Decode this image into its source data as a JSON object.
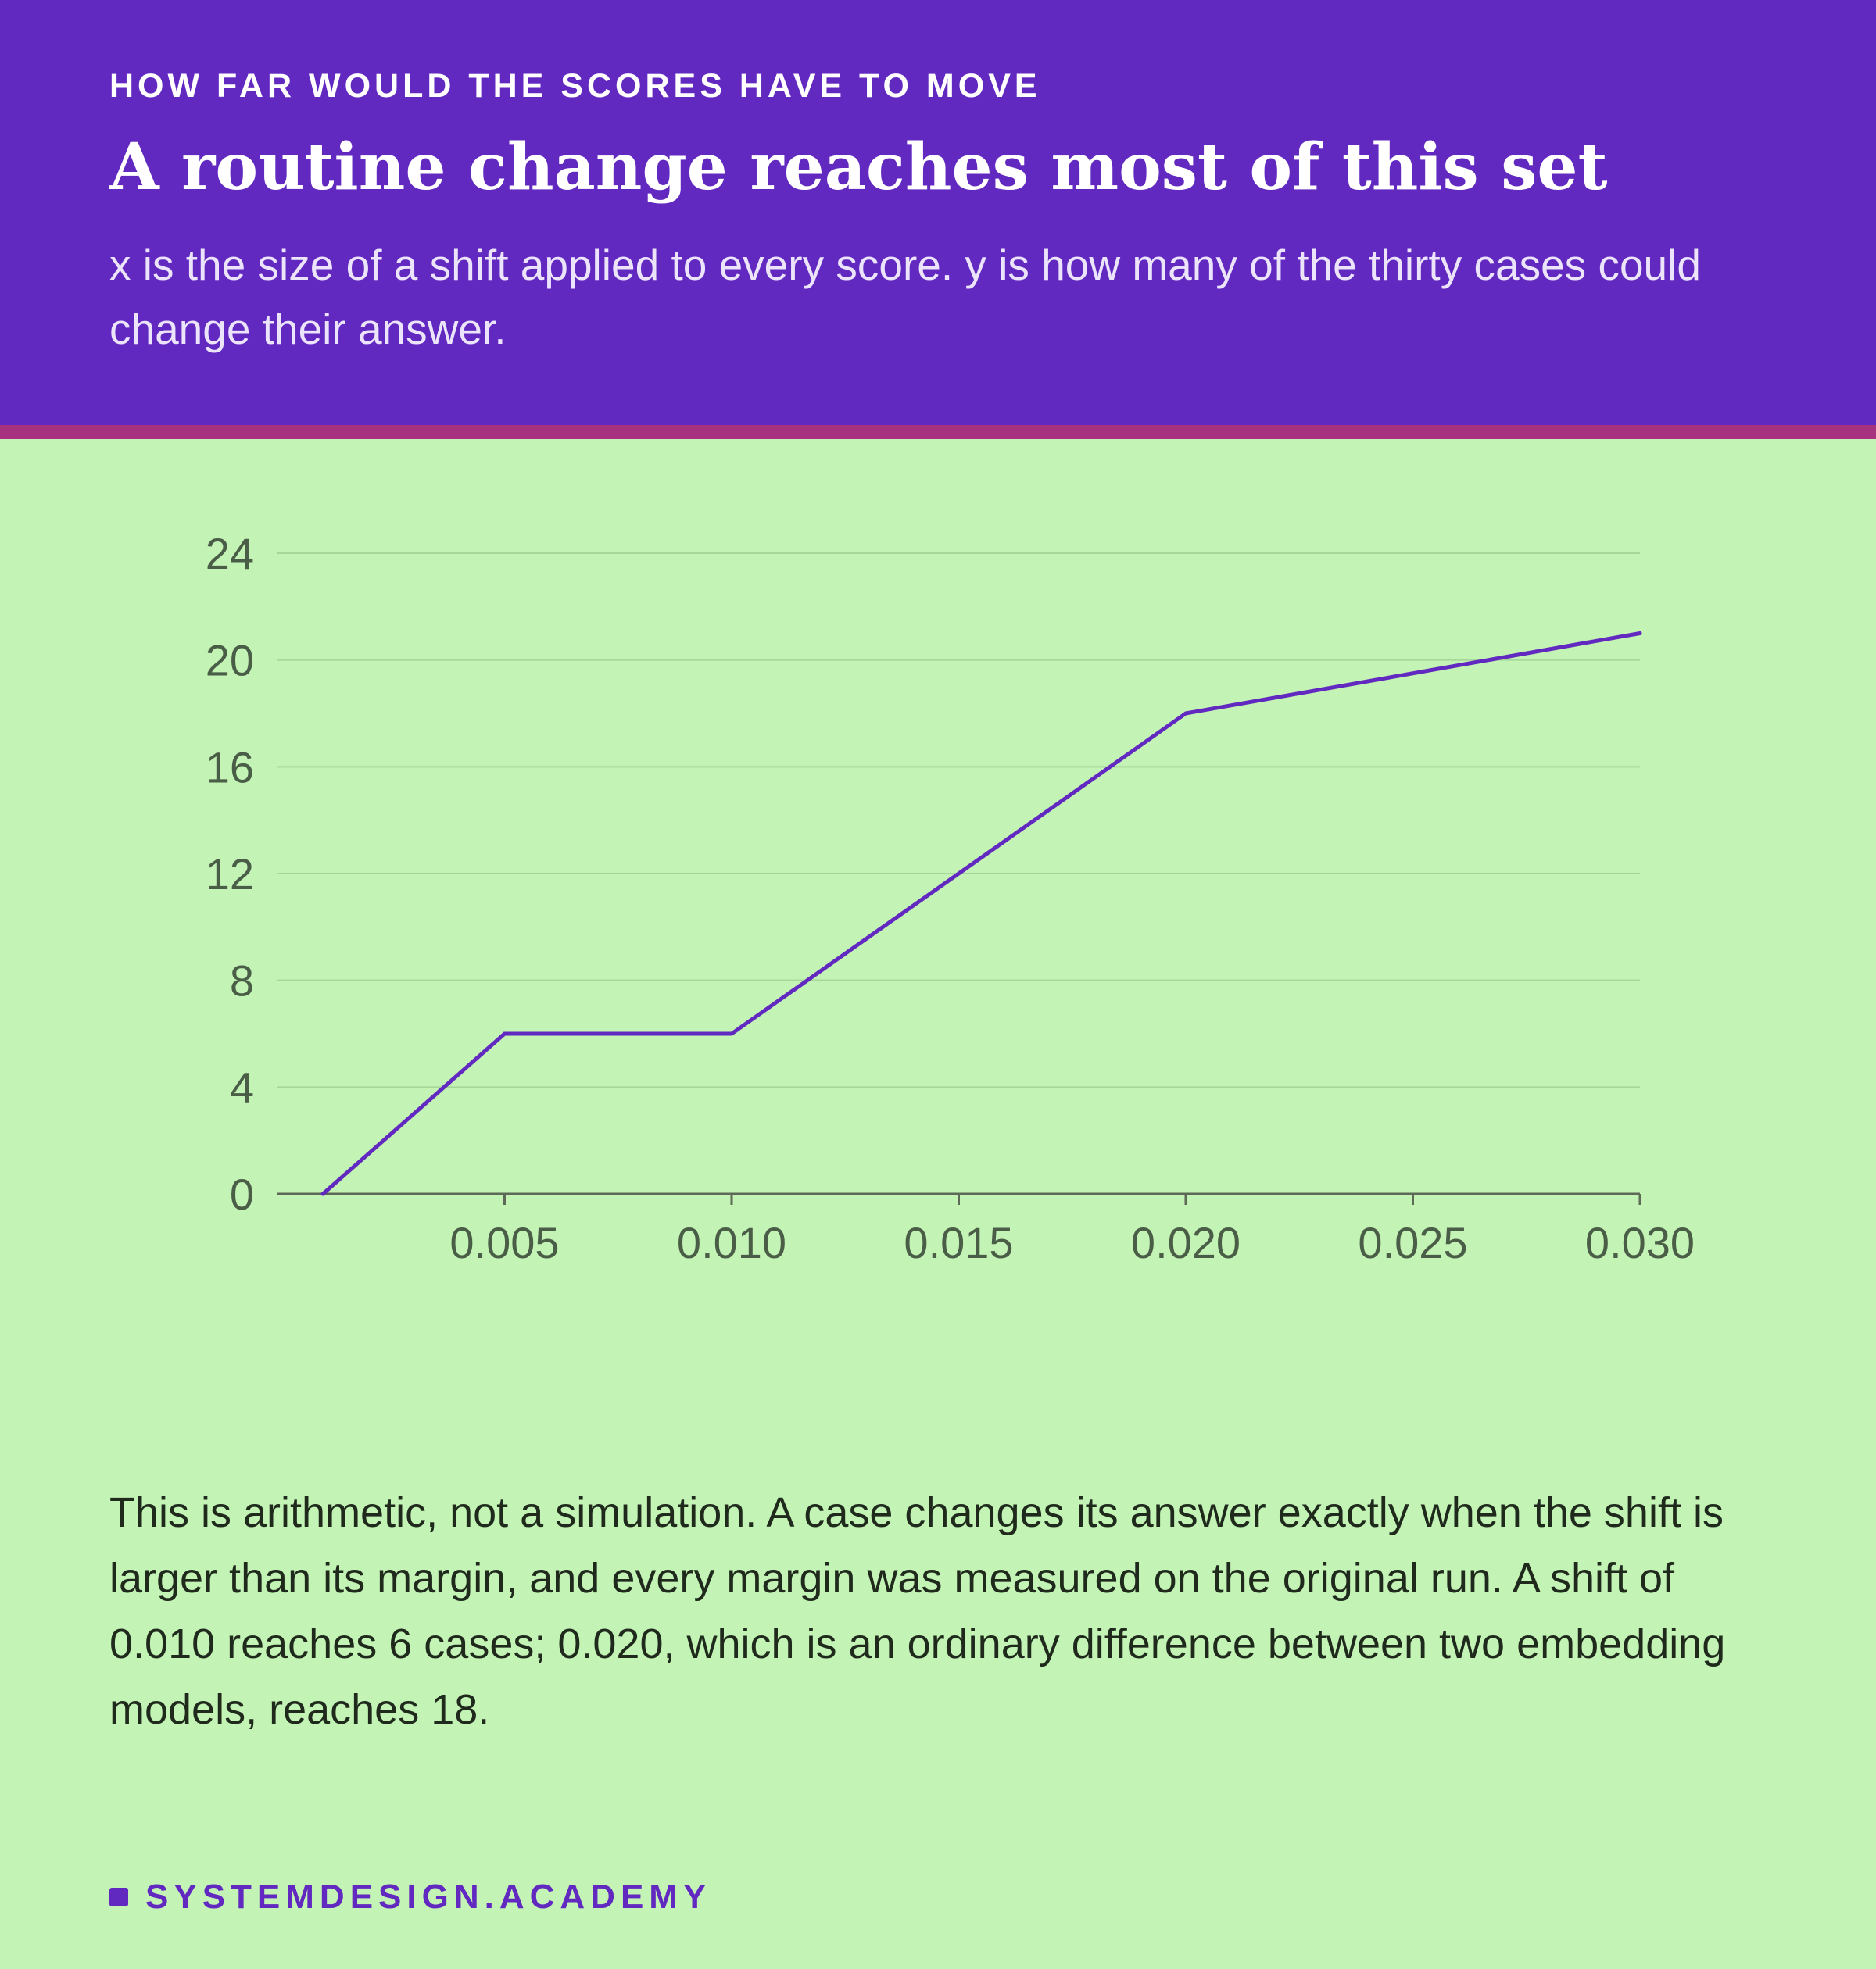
{
  "header": {
    "kicker": "HOW FAR WOULD THE SCORES HAVE TO MOVE",
    "title": "A routine change reaches most of this set",
    "subtitle": "x is the size of a shift applied to every score. y is how many of the thirty cases could change their answer."
  },
  "chart_data": {
    "type": "line",
    "title": "",
    "xlabel": "",
    "ylabel": "",
    "x": [
      0.001,
      0.005,
      0.01,
      0.02,
      0.03
    ],
    "series": [
      {
        "values": [
          0,
          6,
          6,
          18,
          21
        ]
      }
    ],
    "xlim": [
      0.0,
      0.03
    ],
    "ylim": [
      0,
      24
    ],
    "x_ticks": [
      "0.005",
      "0.010",
      "0.015",
      "0.020",
      "0.025",
      "0.030"
    ],
    "y_ticks": [
      "0",
      "4",
      "8",
      "12",
      "16",
      "20",
      "24"
    ],
    "grid": "horizontal",
    "line_color": "#6229c1"
  },
  "caption": "This is arithmetic, not a simulation. A case changes its answer exactly when the shift is larger than its margin, and every margin was measured on the original run. A shift of 0.010 reaches 6 cases; 0.020, which is an ordinary difference between two embedding models, reaches 18.",
  "footer": {
    "brand": "SYSTEMDESIGN.ACADEMY"
  }
}
